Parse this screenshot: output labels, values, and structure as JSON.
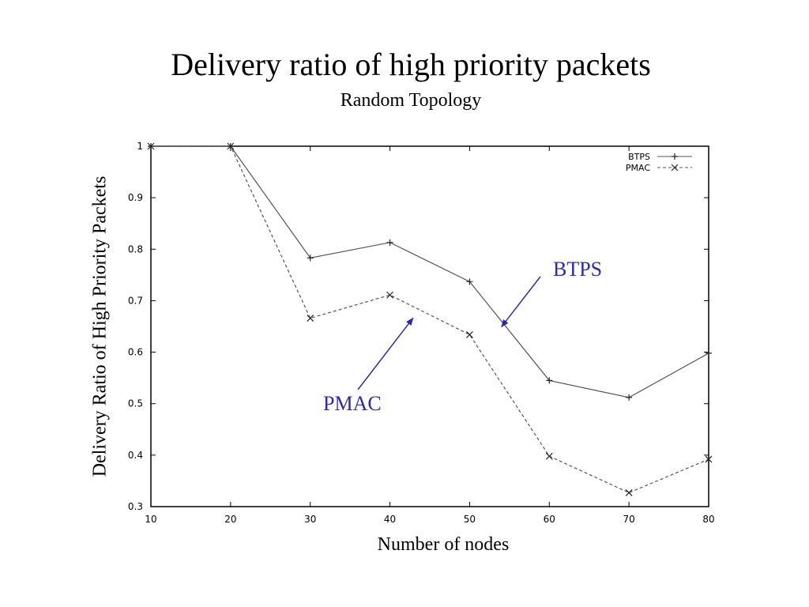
{
  "slide": {
    "title": "Delivery ratio of high priority packets",
    "subtitle": "Random Topology"
  },
  "chart_data": {
    "type": "line",
    "title": "Delivery ratio of high priority packets",
    "subtitle": "Random Topology",
    "xlabel": "Number of nodes",
    "ylabel": "Delivery Ratio of High Priority Packets",
    "x": [
      10,
      20,
      30,
      40,
      50,
      60,
      70,
      80
    ],
    "xlim": [
      10,
      80
    ],
    "ylim": [
      0.3,
      1
    ],
    "x_ticks": [
      "10",
      "20",
      "30",
      "40",
      "50",
      "60",
      "70",
      "80"
    ],
    "y_ticks": [
      "0.3",
      "0.4",
      "0.5",
      "0.6",
      "0.7",
      "0.8",
      "0.9",
      "1"
    ],
    "grid": false,
    "legend_position": "top-right",
    "series": [
      {
        "name": "BTPS",
        "style": "solid",
        "marker": "plus",
        "color": "#555555",
        "values": [
          1.0,
          1.0,
          0.783,
          0.813,
          0.737,
          0.545,
          0.512,
          0.598
        ]
      },
      {
        "name": "PMAC",
        "style": "dashed",
        "marker": "cross",
        "color": "#555555",
        "values": [
          1.0,
          1.0,
          0.666,
          0.711,
          0.634,
          0.398,
          0.327,
          0.392
        ]
      }
    ],
    "annotations": [
      {
        "text": "BTPS",
        "color": "#2a2ab8",
        "target": {
          "x": 54,
          "y": 0.68
        }
      },
      {
        "text": "PMAC",
        "color": "#2a2ab8",
        "target": {
          "x": 42,
          "y": 0.68
        }
      }
    ]
  }
}
